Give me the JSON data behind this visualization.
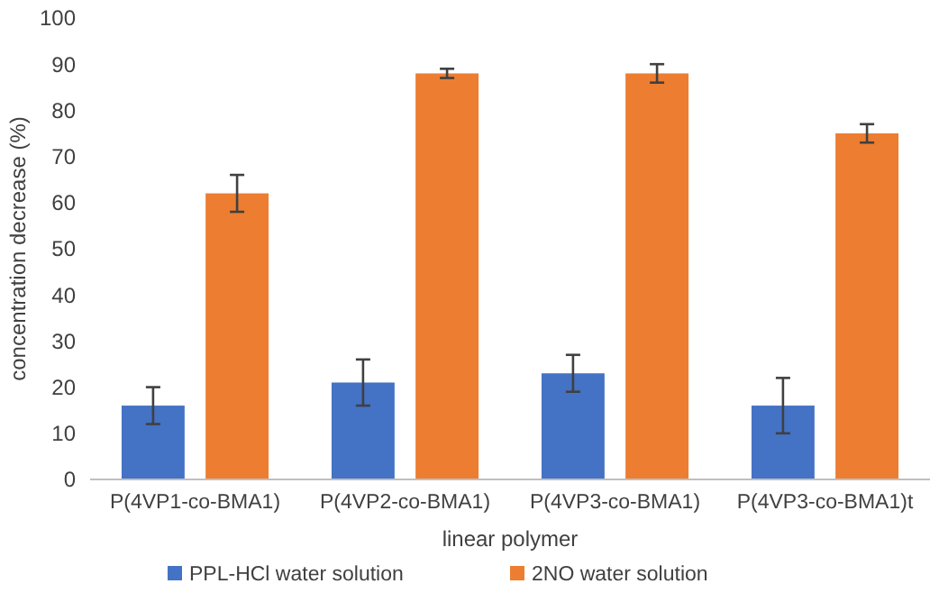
{
  "chart_data": {
    "type": "bar",
    "xlabel": "linear polymer",
    "ylabel": "concentration decrease (%)",
    "categories": [
      "P(4VP1-co-BMA1)",
      "P(4VP2-co-BMA1)",
      "P(4VP3-co-BMA1)",
      "P(4VP3-co-BMA1)t"
    ],
    "series": [
      {
        "name": "PPL-HCl water solution",
        "color": "#4472c4",
        "values": [
          16,
          21,
          23,
          16
        ],
        "errors": [
          4,
          5,
          4,
          6
        ]
      },
      {
        "name": "2NO water solution",
        "color": "#ed7d31",
        "values": [
          62,
          88,
          88,
          75
        ],
        "errors": [
          4,
          1,
          2,
          2
        ]
      }
    ],
    "ylim": [
      0,
      100
    ],
    "yticks": [
      0,
      10,
      20,
      30,
      40,
      50,
      60,
      70,
      80,
      90,
      100
    ],
    "grid": false,
    "legend": "bottom"
  }
}
